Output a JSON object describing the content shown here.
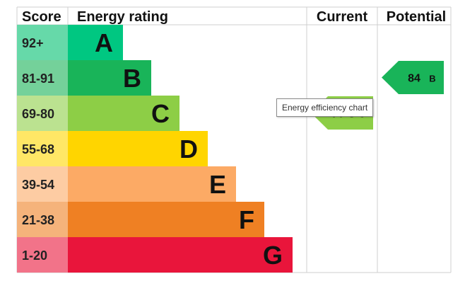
{
  "chart_data": {
    "type": "table",
    "headers": {
      "score": "Score",
      "rating": "Energy rating",
      "current": "Current",
      "potential": "Potential"
    },
    "bands": [
      {
        "range": "92+",
        "letter": "A",
        "color": "#00c781",
        "range_bg": "#66d9a9"
      },
      {
        "range": "81-91",
        "letter": "B",
        "color": "#19b459",
        "range_bg": "#74d19a"
      },
      {
        "range": "69-80",
        "letter": "C",
        "color": "#8dce46",
        "range_bg": "#bbe290"
      },
      {
        "range": "55-68",
        "letter": "D",
        "color": "#ffd500",
        "range_bg": "#ffe766"
      },
      {
        "range": "39-54",
        "letter": "E",
        "color": "#fcaa65",
        "range_bg": "#fdcca3"
      },
      {
        "range": "21-38",
        "letter": "F",
        "color": "#ef8023",
        "range_bg": "#f5b37b"
      },
      {
        "range": "1-20",
        "letter": "G",
        "color": "#e9153b",
        "range_bg": "#f27389"
      }
    ],
    "current": {
      "score": "70",
      "letter": "C",
      "label": "70 C",
      "color": "#8dce46"
    },
    "potential": {
      "score": "84",
      "letter": "B",
      "label": "84",
      "color": "#19b459"
    }
  },
  "tooltip": {
    "text": "Energy efficiency chart"
  }
}
